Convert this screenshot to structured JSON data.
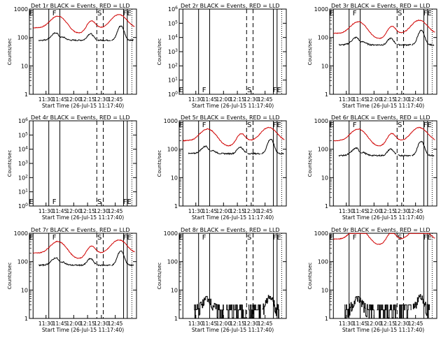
{
  "figure": {
    "xtick_labels": [
      "11:30",
      "11:45",
      "12:00",
      "12:15",
      "12:30",
      "12:45"
    ],
    "xlabel": "Start Time (26-Jul-15 11:17:40)",
    "ylabel": "Counts/sec",
    "event_letters": {
      "E": "E",
      "F": "F",
      "S": "S",
      "FE": "FE"
    },
    "colors": {
      "black_series": "#000000",
      "red_series": "#d00000",
      "axes": "#000000"
    }
  },
  "chart_data": [
    {
      "id": "det1",
      "title": "Det 1r BLACK = Events, RED = LLD",
      "type": "line",
      "x_range_min": [
        -18,
        98
      ],
      "yscale": "log",
      "ylim": [
        1,
        1000
      ],
      "ytick_labels": [
        "1",
        "10",
        "100",
        "1000"
      ],
      "has_red": true,
      "red_level": 220,
      "black_level": 80,
      "black_mode": "cont"
    },
    {
      "id": "det2",
      "title": "Det 2r BLACK = Events, RED = LLD",
      "type": "line",
      "x_range_min": [
        -18,
        98
      ],
      "yscale": "log",
      "ylim": [
        1,
        1000000
      ],
      "ytick_labels": [
        "10^0",
        "10^1",
        "10^2",
        "10^3",
        "10^4",
        "10^5",
        "10^6"
      ],
      "has_red": false,
      "black_mode": "none"
    },
    {
      "id": "det3",
      "title": "Det 3r BLACK = Events, RED = LLD",
      "type": "line",
      "x_range_min": [
        -18,
        98
      ],
      "yscale": "log",
      "ylim": [
        1,
        1000
      ],
      "ytick_labels": [
        "1",
        "10",
        "100",
        "1000"
      ],
      "has_red": true,
      "red_level": 140,
      "black_level": 55,
      "black_mode": "cont"
    },
    {
      "id": "det4",
      "title": "Det 4r BLACK = Events, RED = LLD",
      "type": "line",
      "x_range_min": [
        -18,
        98
      ],
      "yscale": "log",
      "ylim": [
        1,
        1000000
      ],
      "ytick_labels": [
        "10^0",
        "10^1",
        "10^2",
        "10^3",
        "10^4",
        "10^5",
        "10^6"
      ],
      "has_red": false,
      "black_mode": "none"
    },
    {
      "id": "det5",
      "title": "Det 5r BLACK = Events, RED = LLD",
      "type": "line",
      "x_range_min": [
        -18,
        98
      ],
      "yscale": "log",
      "ylim": [
        1,
        1000
      ],
      "ytick_labels": [
        "1",
        "10",
        "100",
        "1000"
      ],
      "has_red": true,
      "red_level": 200,
      "black_level": 70,
      "black_mode": "cont"
    },
    {
      "id": "det6",
      "title": "Det 6r BLACK = Events, RED = LLD",
      "type": "line",
      "x_range_min": [
        -18,
        98
      ],
      "yscale": "log",
      "ylim": [
        1,
        1000
      ],
      "ytick_labels": [
        "1",
        "10",
        "100",
        "1000"
      ],
      "has_red": true,
      "red_level": 200,
      "black_level": 60,
      "black_mode": "cont"
    },
    {
      "id": "det7",
      "title": "Det 7r BLACK = Events, RED = LLD",
      "type": "line",
      "x_range_min": [
        -18,
        98
      ],
      "yscale": "log",
      "ylim": [
        1,
        1000
      ],
      "ytick_labels": [
        "1",
        "10",
        "100",
        "1000"
      ],
      "has_red": true,
      "red_level": 200,
      "black_level": 75,
      "black_mode": "cont"
    },
    {
      "id": "det8",
      "title": "Det 8r BLACK = Events, RED = LLD",
      "type": "line",
      "x_range_min": [
        -18,
        98
      ],
      "yscale": "log",
      "ylim": [
        1,
        1000
      ],
      "ytick_labels": [
        "1",
        "10",
        "100",
        "1000"
      ],
      "has_red": false,
      "black_level": 2,
      "black_mode": "noisy"
    },
    {
      "id": "det9",
      "title": "Det 9r BLACK = Events, RED = LLD",
      "type": "line",
      "x_range_min": [
        -18,
        98
      ],
      "yscale": "log",
      "ylim": [
        1,
        1000
      ],
      "ytick_labels": [
        "1",
        "10",
        "100",
        "1000"
      ],
      "has_red": true,
      "red_level": 620,
      "black_level": 2,
      "black_mode": "noisy"
    }
  ],
  "event_markers_min": {
    "solid": [
      -14,
      3,
      15,
      84,
      88
    ],
    "dashed": [
      55,
      62
    ],
    "dotted": [
      93
    ],
    "letters": {
      "E": -16,
      "F": 9,
      "S": 58,
      "FE": 88
    }
  }
}
